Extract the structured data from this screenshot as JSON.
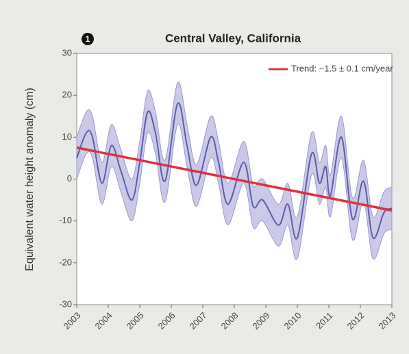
{
  "chart_data": {
    "type": "line",
    "title": "Central Valley, California",
    "panel_label": "1",
    "y_label": "Equivalent water height anomaly (cm)",
    "xlim": [
      2003,
      2013
    ],
    "xticks": [
      2003,
      2004,
      2005,
      2006,
      2007,
      2008,
      2009,
      2010,
      2011,
      2012,
      2013
    ],
    "ylim": [
      -30,
      30
    ],
    "yticks": [
      -30,
      -20,
      -10,
      0,
      10,
      20,
      30
    ],
    "series": [
      {
        "name": "Equivalent water height anomaly",
        "color": "#5a5fa8",
        "band_color": "#cbc8e8",
        "error": 5,
        "x": [
          2003.0,
          2003.3,
          2003.5,
          2003.8,
          2004.1,
          2004.4,
          2004.75,
          2005.0,
          2005.25,
          2005.5,
          2005.8,
          2006.2,
          2006.5,
          2006.8,
          2007.25,
          2007.5,
          2007.8,
          2008.3,
          2008.6,
          2008.9,
          2009.4,
          2009.7,
          2010.0,
          2010.45,
          2010.7,
          2010.9,
          2011.05,
          2011.4,
          2011.75,
          2012.1,
          2012.4,
          2012.75,
          2013.0
        ],
        "values": [
          5,
          11,
          10,
          -1,
          8,
          2,
          -5,
          4,
          16,
          11,
          -0.5,
          18,
          8,
          -1.5,
          10,
          4,
          -6,
          4,
          -6.5,
          -5,
          -11,
          -6,
          -14,
          6,
          -1,
          3,
          -4,
          10,
          -9.5,
          -0.5,
          -14,
          -8,
          -7
        ]
      },
      {
        "name": "Trend: −1.5 ± 0.1 cm/year",
        "color": "#e0303f",
        "x": [
          2003,
          2013
        ],
        "values": [
          7.5,
          -7.5
        ]
      }
    ]
  }
}
